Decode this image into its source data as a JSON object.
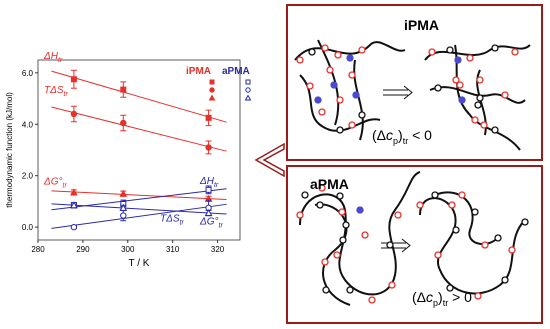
{
  "chart_data": {
    "type": "scatter",
    "x_label": "T / K",
    "y_label": "thermodynamic function (kJ/mol)",
    "x": [
      288,
      299,
      318
    ],
    "xlim": [
      280,
      325
    ],
    "xticks": [
      280,
      290,
      300,
      310,
      320
    ],
    "ylim": [
      -0.5,
      6.5
    ],
    "yticks": [
      {
        "value": 0,
        "label": "0.0"
      },
      {
        "value": 2,
        "label": "2.0"
      },
      {
        "value": 4,
        "label": "4.0"
      },
      {
        "value": 6,
        "label": "6.0"
      }
    ],
    "legend": [
      {
        "name": "iPMA",
        "color": "#e8302a"
      },
      {
        "name": "aPMA",
        "color": "#2a2aa8"
      }
    ],
    "series": [
      {
        "name": "ΔH",
        "sub": "tr",
        "group": 0,
        "marker": "square",
        "color": "#e8302a",
        "values": [
          5.75,
          5.35,
          4.25
        ],
        "errors": [
          0.35,
          0.3,
          0.3
        ]
      },
      {
        "name": "TΔS",
        "sub": "tr",
        "group": 0,
        "marker": "circle",
        "color": "#e8302a",
        "values": [
          4.4,
          4.05,
          3.1
        ],
        "errors": [
          0.3,
          0.3,
          0.25
        ]
      },
      {
        "name": "ΔG°",
        "sub": "tr",
        "group": 0,
        "marker": "triangle",
        "color": "#e8302a",
        "values": [
          1.35,
          1.3,
          1.1
        ],
        "errors": [
          0.1,
          0.1,
          0.1
        ]
      },
      {
        "name": "ΔH",
        "sub": "tr",
        "group": 1,
        "marker": "square",
        "color": "#2a2aa8",
        "values": [
          0.85,
          0.9,
          1.45
        ],
        "errors": [
          0.1,
          0.15,
          0.15
        ]
      },
      {
        "name": "TΔS",
        "sub": "tr",
        "group": 1,
        "marker": "circle",
        "color": "#2a2aa8",
        "values": [
          0.0,
          0.45,
          0.75
        ],
        "errors": [
          0.05,
          0.2,
          0.3
        ]
      },
      {
        "name": "ΔG°",
        "sub": "tr",
        "group": 1,
        "marker": "triangle",
        "color": "#2a2aa8",
        "values": [
          0.85,
          0.75,
          0.55
        ],
        "errors": [
          0.1,
          0.1,
          0.1
        ]
      }
    ]
  },
  "panels": [
    {
      "title": "iPMA",
      "label": [
        "(Δ",
        "c",
        "p",
        ")",
        "tr",
        " < 0"
      ]
    },
    {
      "title": "aPMA",
      "label": [
        "(Δ",
        "c",
        "p",
        ")",
        "tr",
        " > 0"
      ]
    }
  ]
}
